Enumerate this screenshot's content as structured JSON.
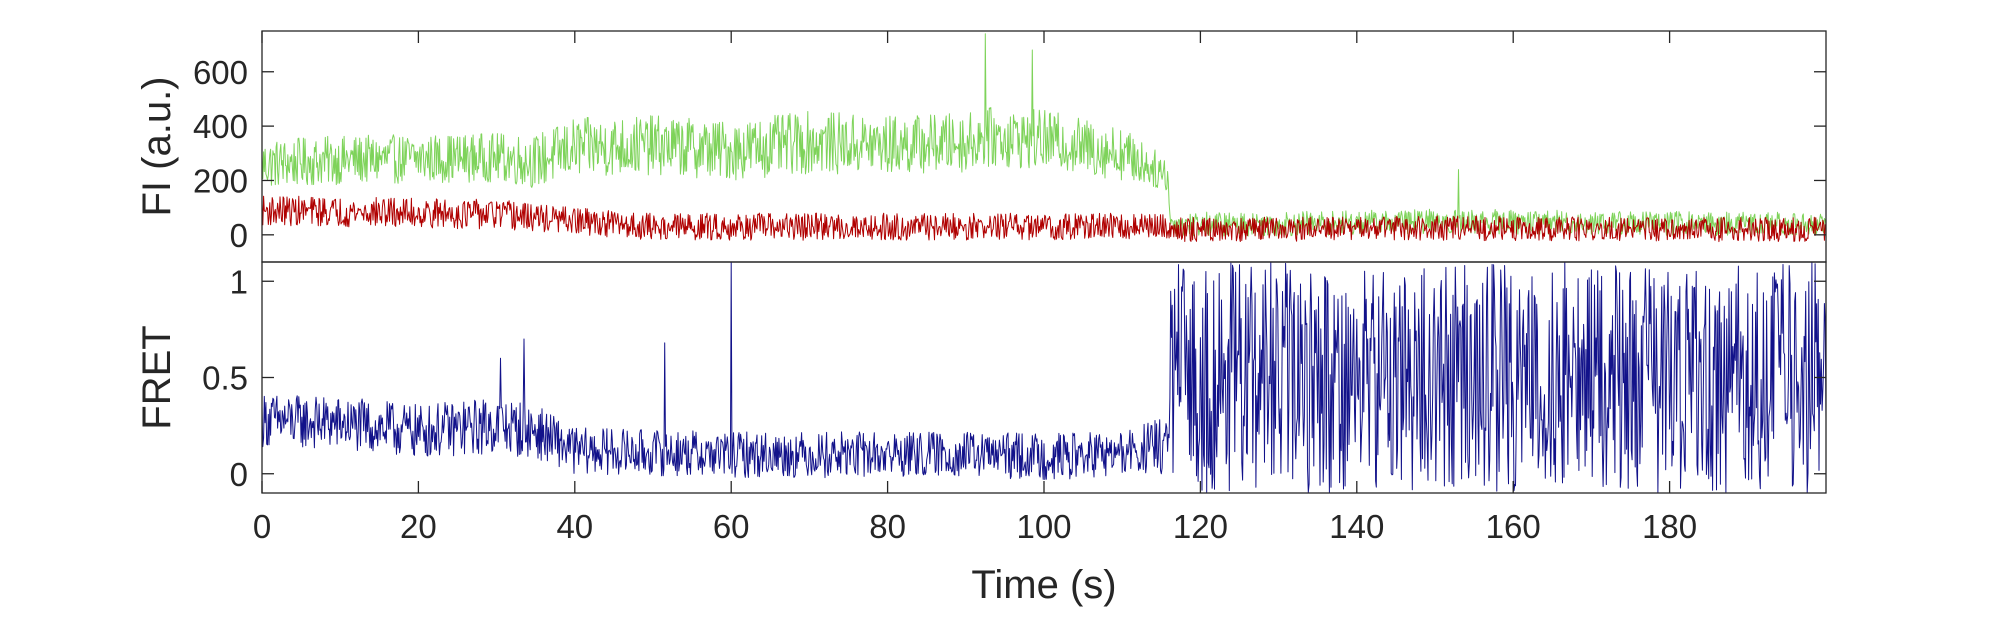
{
  "chart_data": [
    {
      "type": "line",
      "panel": "top",
      "ylabel": "FI (a.u.)",
      "xlabel": "",
      "xlim": [
        0,
        200
      ],
      "ylim": [
        -100,
        750
      ],
      "yticks": [
        0,
        200,
        400,
        600
      ],
      "ytick_labels": [
        "0",
        "200",
        "400",
        "600"
      ],
      "grid": false,
      "legend": "none",
      "series": [
        {
          "color": "#7ed35a",
          "sample_interval_s": 0.1,
          "x": [
            0,
            10,
            20,
            30,
            35,
            40,
            50,
            60,
            70,
            80,
            90,
            92.6,
            100,
            110,
            115.8,
            116.2,
            130,
            150,
            170,
            190,
            200
          ],
          "mean": [
            260,
            275,
            280,
            285,
            270,
            320,
            330,
            310,
            340,
            330,
            340,
            360,
            350,
            300,
            220,
            40,
            40,
            50,
            45,
            40,
            40
          ],
          "noise_amplitude": [
            90,
            90,
            90,
            90,
            100,
            110,
            110,
            110,
            115,
            110,
            110,
            110,
            110,
            100,
            60,
            45,
            45,
            45,
            45,
            45,
            45
          ],
          "spikes": [
            {
              "x": 92.5,
              "y": 740
            },
            {
              "x": 98.5,
              "y": 680
            },
            {
              "x": 153,
              "y": 240
            }
          ]
        },
        {
          "color": "#b00000",
          "sample_interval_s": 0.1,
          "x": [
            0,
            10,
            20,
            30,
            40,
            50,
            60,
            70,
            80,
            90,
            100,
            110,
            115.8,
            116.2,
            130,
            150,
            170,
            190,
            200
          ],
          "mean": [
            90,
            85,
            80,
            75,
            50,
            30,
            30,
            30,
            30,
            30,
            30,
            30,
            30,
            20,
            20,
            25,
            20,
            20,
            20
          ],
          "noise_amplitude": [
            55,
            55,
            55,
            55,
            50,
            50,
            50,
            50,
            50,
            50,
            50,
            50,
            50,
            45,
            45,
            45,
            45,
            45,
            45
          ]
        }
      ]
    },
    {
      "type": "line",
      "panel": "bottom",
      "ylabel": "FRET",
      "xlabel": "Time (s)",
      "xlim": [
        0,
        200
      ],
      "ylim": [
        -0.1,
        1.1
      ],
      "yticks": [
        0,
        0.5,
        1
      ],
      "ytick_labels": [
        "0",
        "0.5",
        "1"
      ],
      "xticks": [
        0,
        20,
        40,
        60,
        80,
        100,
        120,
        140,
        160,
        180
      ],
      "xtick_labels": [
        "0",
        "20",
        "40",
        "60",
        "80",
        "100",
        "120",
        "140",
        "160",
        "180"
      ],
      "grid": false,
      "legend": "none",
      "series": [
        {
          "color": "#12128a",
          "sample_interval_s": 0.1,
          "x": [
            0,
            10,
            20,
            30,
            35,
            40,
            50,
            60,
            70,
            80,
            90,
            100,
            110,
            115.8,
            116.2,
            130,
            150,
            170,
            190,
            200
          ],
          "mean": [
            0.28,
            0.26,
            0.22,
            0.25,
            0.22,
            0.12,
            0.11,
            0.1,
            0.1,
            0.1,
            0.1,
            0.09,
            0.1,
            0.15,
            0.5,
            0.5,
            0.5,
            0.5,
            0.5,
            0.5
          ],
          "noise_amplitude": [
            0.14,
            0.14,
            0.14,
            0.15,
            0.14,
            0.12,
            0.12,
            0.12,
            0.12,
            0.12,
            0.12,
            0.12,
            0.12,
            0.15,
            0.6,
            0.6,
            0.6,
            0.6,
            0.6,
            0.6
          ],
          "spikes": [
            {
              "x": 30.5,
              "y": 0.6
            },
            {
              "x": 33.5,
              "y": 0.7
            },
            {
              "x": 51.5,
              "y": 0.68
            },
            {
              "x": 60.0,
              "y": 1.1
            }
          ]
        }
      ]
    }
  ]
}
